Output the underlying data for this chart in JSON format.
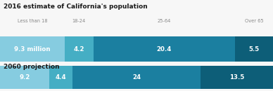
{
  "title1": "2016 estimate of California's population",
  "title2": "2060 projection",
  "col_labels": [
    "Less than 18",
    "18-24",
    "25-64",
    "Over 65"
  ],
  "row1_values": [
    9.3,
    4.2,
    20.4,
    5.5
  ],
  "row1_labels": [
    "9.3 million",
    "4.2",
    "20.4",
    "5.5"
  ],
  "row2_values": [
    9.2,
    4.4,
    24,
    13.5
  ],
  "row2_labels": [
    "9.2",
    "4.4",
    "24",
    "13.5"
  ],
  "colors": [
    "#86cce0",
    "#45aec4",
    "#1b7fa0",
    "#0d5e78"
  ],
  "background": "#f7f7f7",
  "text_color": "#ffffff",
  "title_color": "#1a1a1a",
  "label_color": "#888888",
  "fig_width": 3.88,
  "fig_height": 1.3,
  "dpi": 100
}
